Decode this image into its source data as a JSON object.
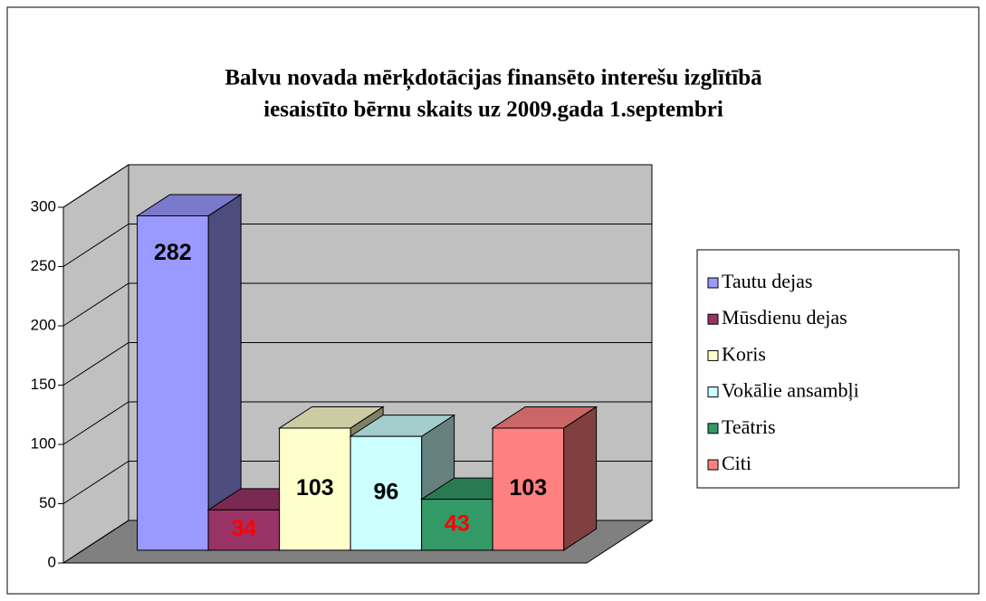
{
  "chart_data": {
    "type": "bar3d",
    "title": "Balvu novada mērķdotācijas finansēto interešu izglītībā",
    "subtitle": "iesaistīto bērnu skaits uz 2009.gada 1.septembri",
    "series": [
      {
        "name": "Tautu dejas",
        "color": "#9999ff",
        "label_color": "#000000",
        "values": [
          282
        ]
      },
      {
        "name": "Mūsdienu dejas",
        "color": "#993366",
        "label_color": "#ff0000",
        "values": [
          34
        ]
      },
      {
        "name": "Koris",
        "color": "#ffffcc",
        "label_color": "#000000",
        "values": [
          103
        ]
      },
      {
        "name": "Vokālie ansambļi",
        "color": "#ccffff",
        "label_color": "#000000",
        "values": [
          96
        ]
      },
      {
        "name": "Teātris",
        "color": "#339966",
        "label_color": "#ff0000",
        "values": [
          43
        ]
      },
      {
        "name": "Citi",
        "color": "#ff8080",
        "label_color": "#000000",
        "values": [
          103
        ]
      }
    ],
    "ylim": [
      0,
      300
    ],
    "yticks": [
      0,
      50,
      100,
      150,
      200,
      250,
      300
    ],
    "grid": true,
    "legend": "right"
  }
}
